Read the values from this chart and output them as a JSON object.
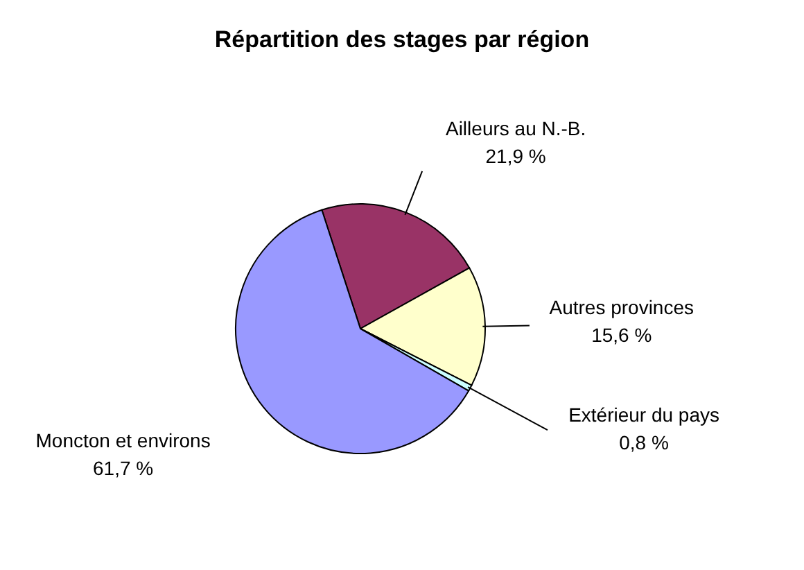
{
  "chart_data": {
    "type": "pie",
    "title": "Répartition des stages par région",
    "categories": [
      "Ailleurs au N.-B.",
      "Autres provinces",
      "Extérieur du pays",
      "Moncton et environs"
    ],
    "values": [
      21.9,
      15.6,
      0.8,
      61.7
    ],
    "value_labels": [
      "21,9 %",
      "15,6 %",
      "0,8 %",
      "61,7 %"
    ],
    "colors": [
      "#993366",
      "#ffffcc",
      "#ccffff",
      "#9999ff"
    ]
  }
}
